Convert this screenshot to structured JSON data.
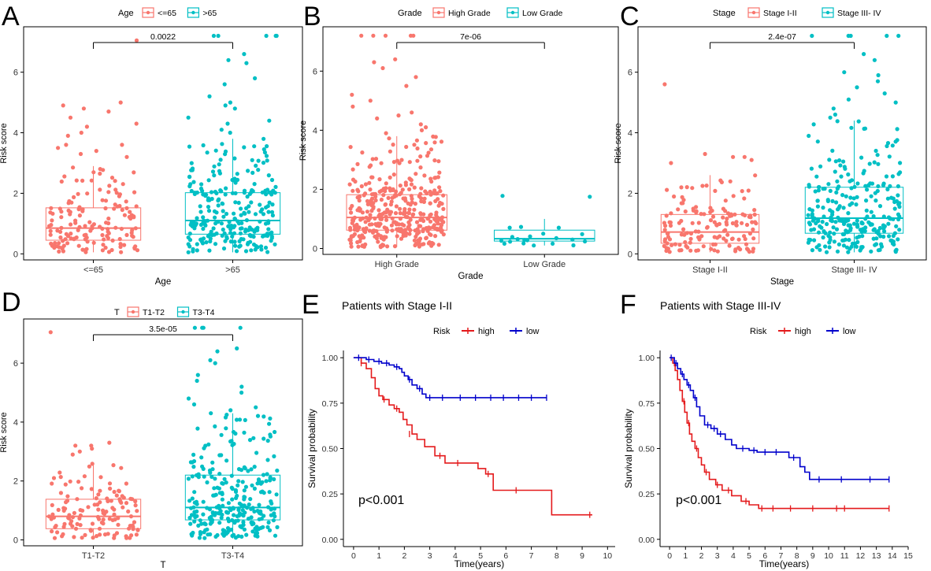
{
  "colors": {
    "salmon": "#F8766D",
    "teal": "#00BFC4",
    "high_red": "#E41A1C",
    "low_blue": "#0000CC"
  },
  "chart_data": [
    {
      "type": "box",
      "panel_letter": "A",
      "legend_title": "Age",
      "xlabel": "Age",
      "ylabel": "Risk score",
      "ylim": [
        -0.2,
        7.5
      ],
      "yticks": [
        0,
        2,
        4,
        6
      ],
      "groups": [
        {
          "name": "<=65",
          "box": {
            "min": 0.05,
            "q1": 0.45,
            "median": 0.85,
            "q3": 1.52,
            "max": 2.9
          },
          "n": 150,
          "outliers": [
            3.6,
            3.5,
            3.4,
            3.3,
            3.6,
            3.2,
            4.0,
            4.3,
            4.5,
            4.9,
            5.0,
            4.8,
            4.7,
            4.2,
            3.9,
            7.05
          ]
        },
        {
          "name": ">65",
          "box": {
            "min": 0.05,
            "q1": 0.65,
            "median": 1.1,
            "q3": 2.02,
            "max": 3.8
          },
          "n": 260,
          "outliers": [
            4.0,
            4.1,
            4.3,
            4.5,
            4.8,
            5.0,
            5.2,
            5.6,
            5.8,
            6.3,
            6.4,
            6.6,
            7.2,
            7.2,
            7.2,
            7.2,
            7.2,
            4.4,
            4.9
          ]
        }
      ],
      "significance": "0.0022"
    },
    {
      "type": "box",
      "panel_letter": "B",
      "legend_title": "Grade",
      "xlabel": "Grade",
      "ylabel": "Risk score",
      "ylim": [
        -0.2,
        7.5
      ],
      "yticks": [
        0,
        2,
        4,
        6
      ],
      "groups": [
        {
          "name": "High Grade",
          "box": {
            "min": 0.05,
            "q1": 0.62,
            "median": 1.05,
            "q3": 1.82,
            "max": 3.8
          },
          "n": 380,
          "outliers": [
            3.9,
            4.0,
            4.2,
            4.4,
            4.6,
            4.8,
            5.0,
            5.2,
            5.5,
            5.8,
            6.1,
            6.4,
            6.3,
            7.2,
            7.2,
            7.2,
            7.2,
            7.2,
            4.1,
            4.5
          ]
        },
        {
          "name": "Low Grade",
          "box": {
            "min": 0.1,
            "q1": 0.25,
            "median": 0.33,
            "q3": 0.62,
            "max": 1.0
          },
          "n": 20,
          "outliers": [
            1.75,
            1.78
          ]
        }
      ],
      "significance": "7e-06"
    },
    {
      "type": "box",
      "panel_letter": "C",
      "legend_title": "Stage",
      "xlabel": "Stage",
      "ylabel": "Risk score",
      "ylim": [
        -0.2,
        7.5
      ],
      "yticks": [
        0,
        2,
        4,
        6
      ],
      "groups": [
        {
          "name": "Stage I-II",
          "box": {
            "min": 0.05,
            "q1": 0.35,
            "median": 0.72,
            "q3": 1.3,
            "max": 2.6
          },
          "n": 150,
          "outliers": [
            3.2,
            3.3,
            3.2,
            3.0,
            3.1,
            5.6
          ]
        },
        {
          "name": "Stage III- IV",
          "box": {
            "min": 0.05,
            "q1": 0.68,
            "median": 1.18,
            "q3": 2.2,
            "max": 4.4
          },
          "n": 270,
          "outliers": [
            4.5,
            4.8,
            5.0,
            5.3,
            5.5,
            5.7,
            6.0,
            6.4,
            6.6,
            7.2,
            7.2,
            7.2,
            7.2,
            7.2,
            4.6,
            5.1,
            5.9
          ]
        }
      ],
      "significance": "2.4e-07"
    },
    {
      "type": "box",
      "panel_letter": "D",
      "legend_title": "T",
      "xlabel": "T",
      "ylabel": "Risk score",
      "ylim": [
        -0.2,
        7.5
      ],
      "yticks": [
        0,
        2,
        4,
        6
      ],
      "groups": [
        {
          "name": "T1-T2",
          "box": {
            "min": 0.05,
            "q1": 0.38,
            "median": 0.8,
            "q3": 1.38,
            "max": 2.6
          },
          "n": 130,
          "outliers": [
            3.2,
            3.3,
            3.1,
            3.0,
            2.9,
            3.2,
            7.05
          ]
        },
        {
          "name": "T3-T4",
          "box": {
            "min": 0.05,
            "q1": 0.68,
            "median": 1.1,
            "q3": 2.2,
            "max": 4.3
          },
          "n": 280,
          "outliers": [
            4.4,
            4.6,
            4.8,
            5.0,
            5.4,
            5.6,
            6.0,
            6.4,
            6.5,
            7.2,
            7.2,
            7.2,
            7.2,
            4.5,
            5.2,
            6.1
          ]
        }
      ],
      "significance": "3.5e-05"
    },
    {
      "type": "km",
      "panel_letter": "E",
      "title": "Patients with Stage I-II",
      "legend_title": "Risk",
      "xlabel": "Time(years)",
      "ylabel": "Survival probability",
      "xlim": [
        -0.4,
        10.3
      ],
      "xticks": [
        0,
        1,
        2,
        3,
        4,
        5,
        6,
        7,
        8,
        9,
        10
      ],
      "ylim": [
        -0.04,
        1.04
      ],
      "yticks": [
        "0.00",
        "0.25",
        "0.50",
        "0.75",
        "1.00"
      ],
      "pvalue": "p<0.001",
      "series": [
        {
          "name": "high",
          "points": [
            [
              0,
              1.0
            ],
            [
              0.3,
              0.97
            ],
            [
              0.5,
              0.94
            ],
            [
              0.7,
              0.89
            ],
            [
              0.85,
              0.83
            ],
            [
              1.0,
              0.79
            ],
            [
              1.15,
              0.77
            ],
            [
              1.4,
              0.74
            ],
            [
              1.6,
              0.72
            ],
            [
              1.8,
              0.7
            ],
            [
              1.95,
              0.66
            ],
            [
              2.1,
              0.63
            ],
            [
              2.3,
              0.58
            ],
            [
              2.5,
              0.55
            ],
            [
              2.8,
              0.51
            ],
            [
              3.2,
              0.46
            ],
            [
              3.6,
              0.42
            ],
            [
              4.9,
              0.39
            ],
            [
              5.2,
              0.36
            ],
            [
              5.5,
              0.27
            ],
            [
              7.8,
              0.135
            ],
            [
              9.4,
              0.135
            ]
          ],
          "censor": [
            [
              0.3,
              0.97
            ],
            [
              1.2,
              0.77
            ],
            [
              1.7,
              0.72
            ],
            [
              2.2,
              0.58
            ],
            [
              3.4,
              0.46
            ],
            [
              4.1,
              0.42
            ],
            [
              5.3,
              0.36
            ],
            [
              6.4,
              0.27
            ],
            [
              9.3,
              0.135
            ]
          ]
        },
        {
          "name": "low",
          "points": [
            [
              0,
              1.0
            ],
            [
              0.5,
              0.99
            ],
            [
              0.8,
              0.98
            ],
            [
              1.1,
              0.97
            ],
            [
              1.4,
              0.96
            ],
            [
              1.6,
              0.95
            ],
            [
              1.8,
              0.94
            ],
            [
              1.9,
              0.92
            ],
            [
              2.0,
              0.9
            ],
            [
              2.15,
              0.88
            ],
            [
              2.3,
              0.85
            ],
            [
              2.5,
              0.83
            ],
            [
              2.7,
              0.8
            ],
            [
              2.85,
              0.78
            ],
            [
              7.6,
              0.78
            ]
          ],
          "censor": [
            [
              0.2,
              1.0
            ],
            [
              0.6,
              0.99
            ],
            [
              1.0,
              0.98
            ],
            [
              1.3,
              0.97
            ],
            [
              1.7,
              0.95
            ],
            [
              2.2,
              0.88
            ],
            [
              2.6,
              0.83
            ],
            [
              3.0,
              0.78
            ],
            [
              3.5,
              0.78
            ],
            [
              4.2,
              0.78
            ],
            [
              4.8,
              0.78
            ],
            [
              5.4,
              0.78
            ],
            [
              5.9,
              0.78
            ],
            [
              6.5,
              0.78
            ],
            [
              7.0,
              0.78
            ],
            [
              7.6,
              0.78
            ]
          ]
        }
      ]
    },
    {
      "type": "km",
      "panel_letter": "F",
      "title": "Patients with Stage III-IV",
      "legend_title": "Risk",
      "xlabel": "Time(years)",
      "ylabel": "Survival probability",
      "xlim": [
        -0.6,
        15.0
      ],
      "xticks": [
        0,
        1,
        2,
        3,
        4,
        5,
        6,
        7,
        8,
        9,
        10,
        11,
        12,
        13,
        14,
        15
      ],
      "ylim": [
        -0.04,
        1.04
      ],
      "yticks": [
        "0.00",
        "0.25",
        "0.50",
        "0.75",
        "1.00"
      ],
      "pvalue": "p<0.001",
      "series": [
        {
          "name": "high",
          "points": [
            [
              0,
              1.0
            ],
            [
              0.2,
              0.97
            ],
            [
              0.35,
              0.93
            ],
            [
              0.5,
              0.88
            ],
            [
              0.65,
              0.82
            ],
            [
              0.8,
              0.76
            ],
            [
              0.95,
              0.7
            ],
            [
              1.1,
              0.64
            ],
            [
              1.25,
              0.58
            ],
            [
              1.4,
              0.54
            ],
            [
              1.6,
              0.5
            ],
            [
              1.8,
              0.45
            ],
            [
              2.0,
              0.41
            ],
            [
              2.2,
              0.37
            ],
            [
              2.5,
              0.33
            ],
            [
              2.9,
              0.3
            ],
            [
              3.3,
              0.27
            ],
            [
              3.9,
              0.24
            ],
            [
              4.5,
              0.21
            ],
            [
              5.0,
              0.19
            ],
            [
              5.6,
              0.17
            ],
            [
              13.8,
              0.17
            ]
          ],
          "censor": [
            [
              0.3,
              0.97
            ],
            [
              0.9,
              0.76
            ],
            [
              1.2,
              0.64
            ],
            [
              1.7,
              0.5
            ],
            [
              2.3,
              0.37
            ],
            [
              3.0,
              0.3
            ],
            [
              3.7,
              0.27
            ],
            [
              4.8,
              0.21
            ],
            [
              5.8,
              0.17
            ],
            [
              6.5,
              0.17
            ],
            [
              7.6,
              0.17
            ],
            [
              9.0,
              0.17
            ],
            [
              10.5,
              0.17
            ],
            [
              11.0,
              0.17
            ],
            [
              13.8,
              0.17
            ]
          ]
        },
        {
          "name": "low",
          "points": [
            [
              0,
              1.0
            ],
            [
              0.3,
              0.97
            ],
            [
              0.5,
              0.94
            ],
            [
              0.7,
              0.91
            ],
            [
              0.9,
              0.88
            ],
            [
              1.1,
              0.85
            ],
            [
              1.3,
              0.82
            ],
            [
              1.5,
              0.78
            ],
            [
              1.7,
              0.73
            ],
            [
              1.9,
              0.68
            ],
            [
              2.2,
              0.63
            ],
            [
              2.6,
              0.61
            ],
            [
              3.0,
              0.58
            ],
            [
              3.5,
              0.55
            ],
            [
              3.9,
              0.52
            ],
            [
              4.2,
              0.5
            ],
            [
              5.0,
              0.49
            ],
            [
              5.5,
              0.48
            ],
            [
              7.5,
              0.45
            ],
            [
              8.2,
              0.4
            ],
            [
              8.5,
              0.37
            ],
            [
              8.8,
              0.33
            ],
            [
              13.8,
              0.33
            ]
          ],
          "censor": [
            [
              0.1,
              1.0
            ],
            [
              0.4,
              0.97
            ],
            [
              0.8,
              0.91
            ],
            [
              1.2,
              0.85
            ],
            [
              1.6,
              0.78
            ],
            [
              2.4,
              0.63
            ],
            [
              2.8,
              0.61
            ],
            [
              3.2,
              0.58
            ],
            [
              4.6,
              0.5
            ],
            [
              5.3,
              0.49
            ],
            [
              6.0,
              0.48
            ],
            [
              6.7,
              0.48
            ],
            [
              7.8,
              0.45
            ],
            [
              9.4,
              0.33
            ],
            [
              10.8,
              0.33
            ],
            [
              12.6,
              0.33
            ],
            [
              13.8,
              0.33
            ]
          ]
        }
      ]
    }
  ]
}
